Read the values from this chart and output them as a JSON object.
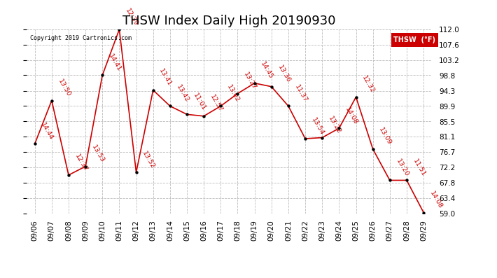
{
  "title": "THSW Index Daily High 20190930",
  "copyright": "Copyright 2019 Cartronics.com",
  "dates": [
    "09/06",
    "09/07",
    "09/08",
    "09/09",
    "09/10",
    "09/11",
    "09/12",
    "09/13",
    "09/14",
    "09/15",
    "09/16",
    "09/17",
    "09/18",
    "09/19",
    "09/20",
    "09/21",
    "09/22",
    "09/23",
    "09/24",
    "09/25",
    "09/26",
    "09/27",
    "09/28",
    "09/29"
  ],
  "values": [
    79.0,
    91.5,
    70.0,
    72.5,
    98.8,
    112.0,
    70.8,
    94.5,
    89.9,
    87.5,
    87.0,
    89.9,
    93.5,
    96.5,
    95.5,
    89.9,
    80.5,
    80.8,
    83.5,
    92.5,
    77.5,
    68.5,
    68.5,
    59.2
  ],
  "times": [
    "14:44",
    "13:50",
    "12:37",
    "13:53",
    "14:41",
    "12:39",
    "13:52",
    "13:41",
    "13:42",
    "11:01",
    "12:57",
    "13:02",
    "13:27",
    "14:45",
    "13:36",
    "11:37",
    "13:54",
    "13:22",
    "14:08",
    "12:32",
    "13:09",
    "13:20",
    "11:51",
    "14:08"
  ],
  "ylim": [
    59.0,
    112.0
  ],
  "yticks": [
    59.0,
    63.4,
    67.8,
    72.2,
    76.7,
    81.1,
    85.5,
    89.9,
    94.3,
    98.8,
    103.2,
    107.6,
    112.0
  ],
  "line_color": "#cc0000",
  "marker_color": "#000000",
  "bg_color": "#ffffff",
  "grid_color": "#bbbbbb",
  "title_fontsize": 13,
  "tick_fontsize": 7.5,
  "annotation_fontsize": 6.8,
  "legend_bg": "#cc0000",
  "legend_text": "THSW  (°F)"
}
